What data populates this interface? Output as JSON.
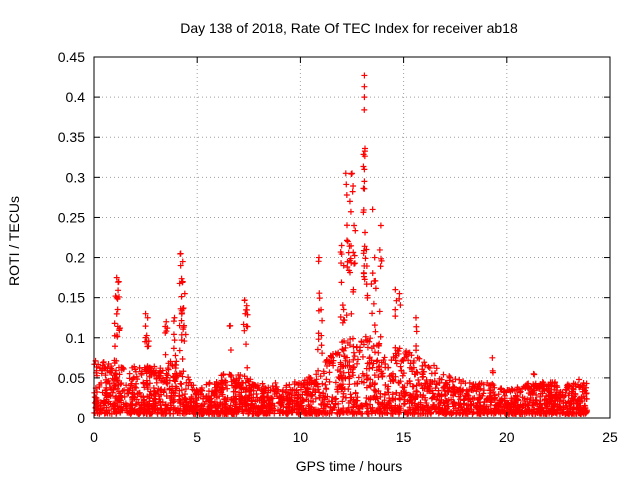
{
  "chart_data": {
    "type": "scatter",
    "title": "Day 138 of 2018, Rate Of TEC Index for receiver ab18",
    "xlabel": "GPS time / hours",
    "ylabel": "ROTI / TECUs",
    "xlim": [
      0,
      25
    ],
    "ylim": [
      0,
      0.45
    ],
    "x_ticks": [
      0,
      5,
      10,
      15,
      20,
      25
    ],
    "y_ticks": [
      0,
      0.05,
      0.1,
      0.15,
      0.2,
      0.25,
      0.3,
      0.35,
      0.4,
      0.45
    ],
    "x_tick_labels": [
      "0",
      "5",
      "10",
      "15",
      "20",
      "25"
    ],
    "y_tick_labels": [
      "0",
      "0.05",
      "0.1",
      "0.15",
      "0.2",
      "0.25",
      "0.3",
      "0.35",
      "0.4",
      "0.45"
    ],
    "grid": true,
    "marker": "+",
    "series": [
      {
        "name": "ROTI",
        "color": "#ff0000",
        "x_range": [
          0,
          23.9
        ],
        "baseline_envelope": {
          "x": [
            0,
            1,
            2,
            3,
            4,
            5,
            6,
            7,
            8,
            9,
            10,
            11,
            12,
            13,
            14,
            15,
            16,
            17,
            18,
            19,
            20,
            21,
            22,
            23,
            23.9
          ],
          "y_max": [
            0.07,
            0.06,
            0.06,
            0.06,
            0.07,
            0.03,
            0.05,
            0.05,
            0.04,
            0.04,
            0.04,
            0.06,
            0.09,
            0.1,
            0.09,
            0.08,
            0.07,
            0.05,
            0.04,
            0.04,
            0.03,
            0.04,
            0.04,
            0.04,
            0.04
          ]
        },
        "notable_points": [
          {
            "x": 13.1,
            "y": 0.427
          },
          {
            "x": 13.1,
            "y": 0.413
          },
          {
            "x": 13.1,
            "y": 0.4
          },
          {
            "x": 12.2,
            "y": 0.305
          },
          {
            "x": 12.5,
            "y": 0.305
          },
          {
            "x": 13.1,
            "y": 0.295
          },
          {
            "x": 12.4,
            "y": 0.27
          },
          {
            "x": 13.5,
            "y": 0.26
          },
          {
            "x": 12.6,
            "y": 0.24
          },
          {
            "x": 13.9,
            "y": 0.24
          },
          {
            "x": 12.0,
            "y": 0.215
          },
          {
            "x": 12.3,
            "y": 0.22
          },
          {
            "x": 4.2,
            "y": 0.205
          },
          {
            "x": 4.3,
            "y": 0.195
          },
          {
            "x": 4.2,
            "y": 0.19
          },
          {
            "x": 10.9,
            "y": 0.2
          },
          {
            "x": 13.2,
            "y": 0.21
          },
          {
            "x": 13.6,
            "y": 0.2
          },
          {
            "x": 12.1,
            "y": 0.19
          },
          {
            "x": 1.1,
            "y": 0.175
          },
          {
            "x": 1.2,
            "y": 0.17
          },
          {
            "x": 1.1,
            "y": 0.15
          },
          {
            "x": 4.3,
            "y": 0.17
          },
          {
            "x": 4.4,
            "y": 0.155
          },
          {
            "x": 7.3,
            "y": 0.147
          },
          {
            "x": 7.4,
            "y": 0.14
          },
          {
            "x": 14.6,
            "y": 0.16
          },
          {
            "x": 14.8,
            "y": 0.155
          },
          {
            "x": 2.5,
            "y": 0.13
          },
          {
            "x": 2.6,
            "y": 0.125
          },
          {
            "x": 3.5,
            "y": 0.12
          },
          {
            "x": 3.9,
            "y": 0.125
          },
          {
            "x": 1.0,
            "y": 0.118
          },
          {
            "x": 6.6,
            "y": 0.115
          },
          {
            "x": 15.6,
            "y": 0.125
          },
          {
            "x": 11.0,
            "y": 0.135
          },
          {
            "x": 19.3,
            "y": 0.075
          },
          {
            "x": 21.3,
            "y": 0.055
          },
          {
            "x": 23.5,
            "y": 0.048
          }
        ]
      }
    ]
  }
}
